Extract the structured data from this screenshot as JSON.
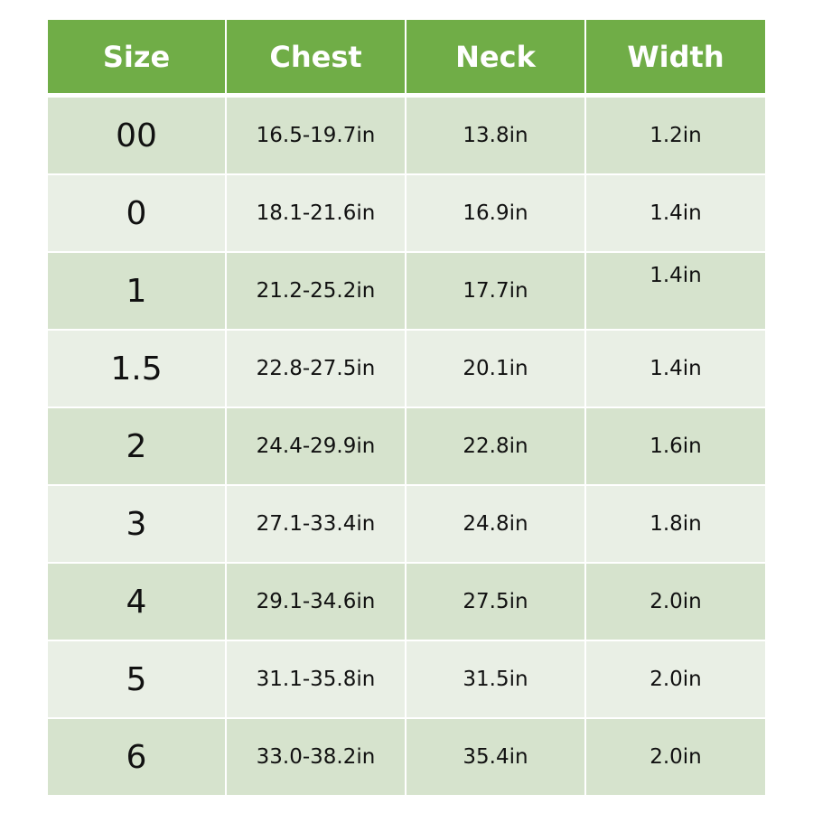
{
  "table": {
    "header": [
      "Size",
      "Chest",
      "Neck",
      "Width"
    ],
    "rows": [
      [
        "00",
        "16.5-19.7in",
        "13.8in",
        "1.2in"
      ],
      [
        "0",
        "18.1-21.6in",
        "16.9in",
        "1.4in"
      ],
      [
        "1",
        "21.2-25.2in",
        "17.7in",
        "1.4in"
      ],
      [
        "1.5",
        "22.8-27.5in",
        "20.1in",
        "1.4in"
      ],
      [
        "2",
        "24.4-29.9in",
        "22.8in",
        "1.6in"
      ],
      [
        "3",
        "27.1-33.4in",
        "24.8in",
        "1.8in"
      ],
      [
        "4",
        "29.1-34.6in",
        "27.5in",
        "2.0in"
      ],
      [
        "5",
        "31.1-35.8in",
        "31.5in",
        "2.0in"
      ],
      [
        "6",
        "33.0-38.2in",
        "35.4in",
        "2.0in"
      ]
    ]
  }
}
